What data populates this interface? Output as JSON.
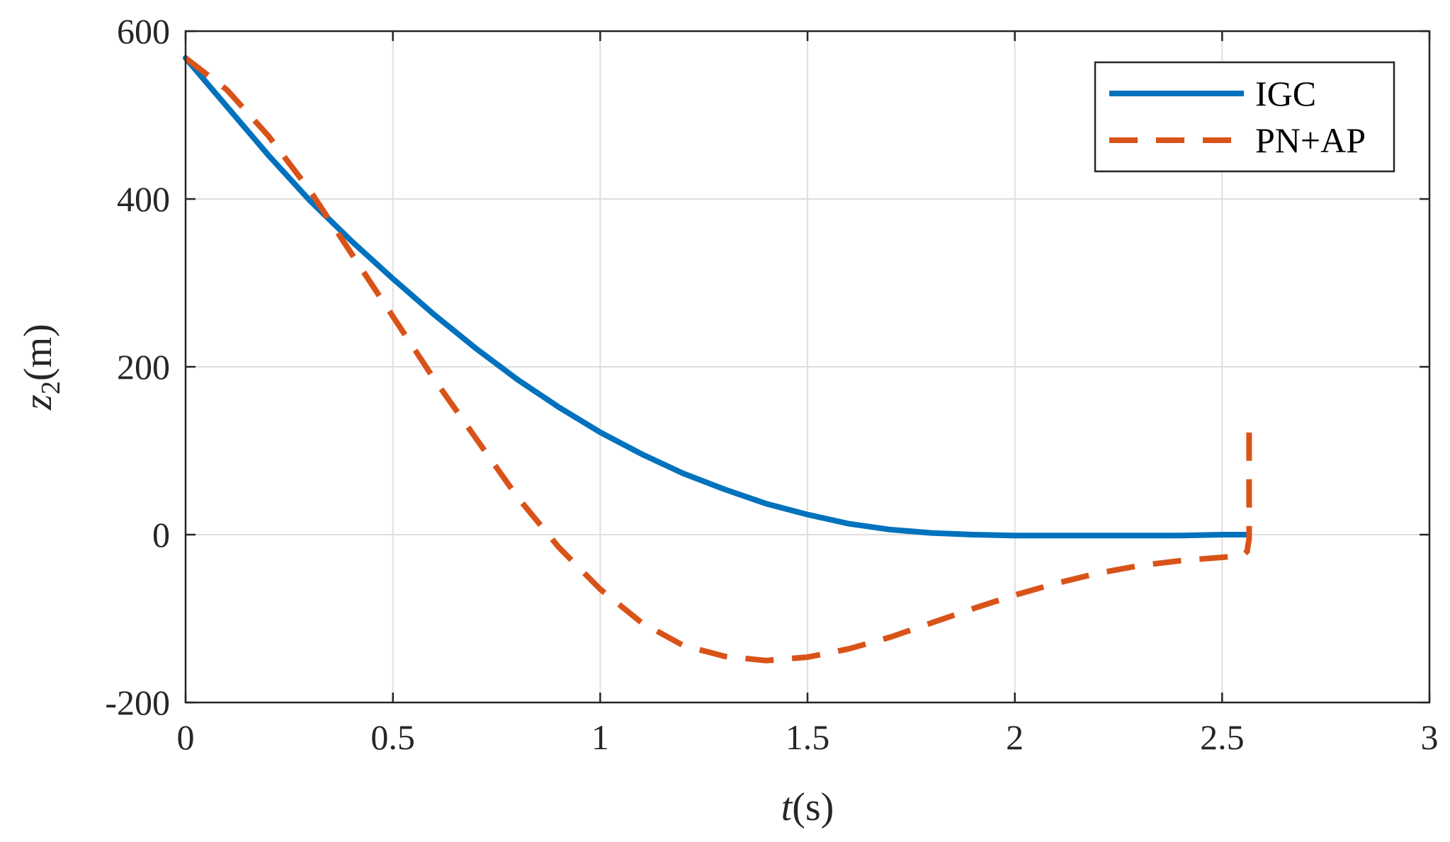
{
  "chart_data": {
    "type": "line",
    "xlabel_var": "t",
    "xlabel_unit": "(s)",
    "ylabel_var": "z",
    "ylabel_sub": "2",
    "ylabel_unit": "(m)",
    "xlim": [
      0,
      3
    ],
    "ylim": [
      -200,
      600
    ],
    "xticks": [
      0,
      0.5,
      1,
      1.5,
      2,
      2.5,
      3
    ],
    "xtick_labels": [
      "0",
      "0.5",
      "1",
      "1.5",
      "2",
      "2.5",
      "3"
    ],
    "yticks": [
      -200,
      0,
      200,
      400,
      600
    ],
    "ytick_labels": [
      "-200",
      "0",
      "200",
      "400",
      "600"
    ],
    "grid": true,
    "legend_position": "top-right",
    "series": [
      {
        "name": "IGC",
        "color": "#0072BD",
        "style": "solid",
        "x": [
          0,
          0.1,
          0.2,
          0.3,
          0.4,
          0.5,
          0.6,
          0.7,
          0.8,
          0.9,
          1.0,
          1.1,
          1.2,
          1.3,
          1.4,
          1.5,
          1.6,
          1.7,
          1.8,
          1.9,
          2.0,
          2.1,
          2.2,
          2.3,
          2.4,
          2.5,
          2.56
        ],
        "y": [
          568,
          510,
          452,
          398,
          350,
          305,
          262,
          222,
          185,
          152,
          122,
          96,
          73,
          54,
          37,
          24,
          13,
          6,
          2,
          0,
          -1,
          -1,
          -1,
          -1,
          -1,
          0,
          0
        ]
      },
      {
        "name": "PN+AP",
        "color": "#D95319",
        "style": "dashed",
        "x": [
          0,
          0.1,
          0.2,
          0.3,
          0.4,
          0.5,
          0.6,
          0.7,
          0.8,
          0.9,
          1.0,
          1.1,
          1.2,
          1.3,
          1.4,
          1.5,
          1.6,
          1.7,
          1.8,
          1.9,
          2.0,
          2.1,
          2.2,
          2.3,
          2.4,
          2.5,
          2.55,
          2.56,
          2.565,
          2.565
        ],
        "y": [
          568,
          530,
          475,
          410,
          335,
          260,
          185,
          115,
          45,
          -15,
          -65,
          -105,
          -132,
          -145,
          -150,
          -146,
          -136,
          -122,
          -105,
          -88,
          -72,
          -58,
          -46,
          -37,
          -31,
          -27,
          -25,
          -20,
          -5,
          122
        ]
      }
    ]
  }
}
